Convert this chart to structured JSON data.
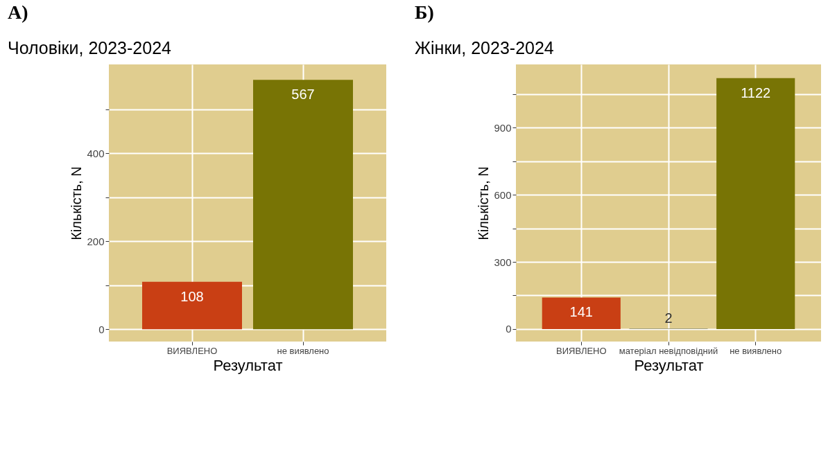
{
  "chart_data": [
    {
      "type": "bar",
      "title": "Чоловіки, 2023-2024",
      "xlabel": "Результат",
      "ylabel": "Кількість, N",
      "annotations": [
        "А)"
      ],
      "categories": [
        "ВИЯВЛЕНО",
        "не виявлено"
      ],
      "values": [
        108,
        567
      ],
      "colors": [
        "#c93f14",
        "#787405"
      ],
      "ylim": [
        -28,
        602
      ],
      "yticks": [
        0,
        {
          "value": 100,
          "label": null
        },
        200,
        {
          "value": 300,
          "label": null
        },
        400,
        {
          "value": 500,
          "label": null
        }
      ],
      "grid": true,
      "data_labels": true
    },
    {
      "type": "bar",
      "title": "Жінки, 2023-2024",
      "xlabel": "Результат",
      "ylabel": "Кількість, N",
      "annotations": [
        "Б)"
      ],
      "categories": [
        "ВИЯВЛЕНО",
        "матеріал невідповідний",
        "не виявлено"
      ],
      "values": [
        141,
        2,
        1122
      ],
      "colors": [
        "#c93f14",
        "#8a8a6a",
        "#787405"
      ],
      "ylim": [
        -56,
        1183
      ],
      "yticks": [
        0,
        {
          "value": 150,
          "label": null
        },
        300,
        {
          "value": 450,
          "label": null
        },
        600,
        {
          "value": 750,
          "label": null
        },
        900,
        {
          "value": 1050,
          "label": null
        }
      ],
      "grid": true,
      "data_labels": true
    }
  ]
}
